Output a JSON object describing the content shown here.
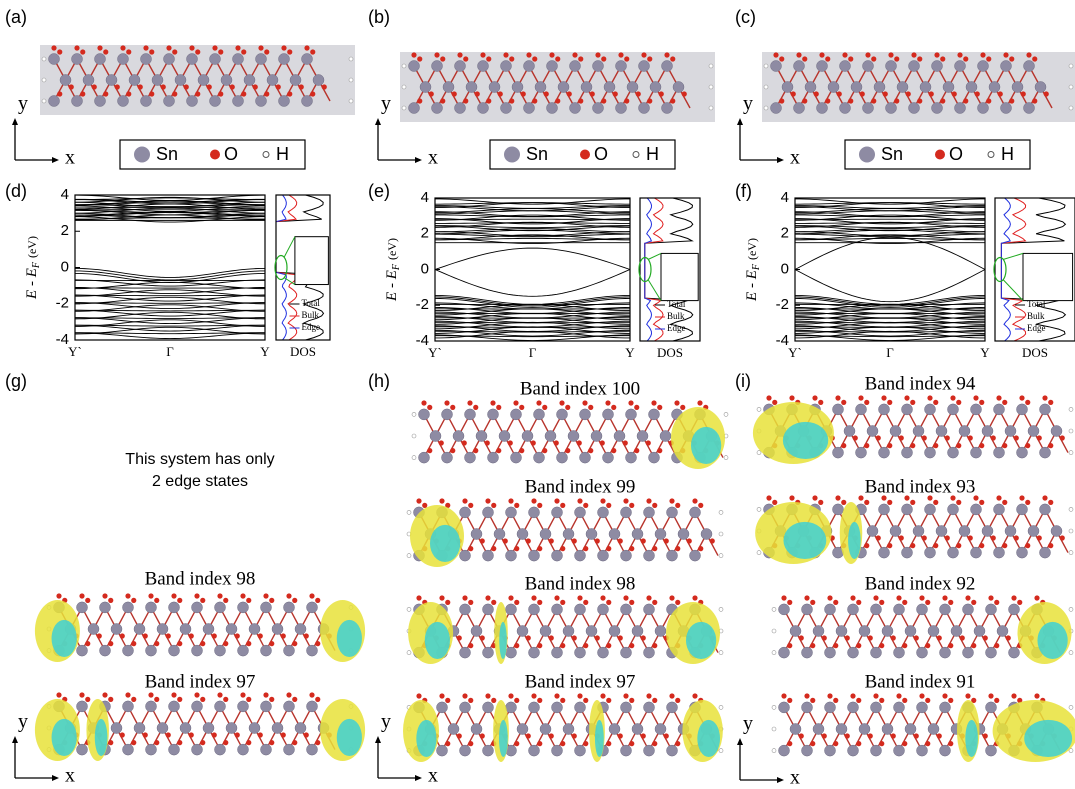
{
  "panels": [
    {
      "label": "(a)",
      "axes": [
        "y",
        "x"
      ],
      "legend": [
        "Sn",
        "O",
        "H"
      ]
    },
    {
      "label": "(b)",
      "axes": [
        "y",
        "x"
      ],
      "legend": [
        "Sn",
        "O",
        "H"
      ]
    },
    {
      "label": "(c)",
      "axes": [
        "y",
        "x"
      ],
      "legend": [
        "Sn",
        "O",
        "H"
      ]
    },
    {
      "label": "(d)",
      "y_label": "E - E",
      "y_label_sub": "F",
      "y_unit": "(eV)",
      "yticks": [
        4,
        2,
        0,
        -2,
        -4
      ],
      "xticks": [
        "Y`",
        "Γ",
        "Y"
      ],
      "dos_label": "DOS",
      "dos_legend": [
        "Total",
        "Bulk",
        "Edge"
      ]
    },
    {
      "label": "(e)",
      "y_label": "E - E",
      "y_label_sub": "F",
      "y_unit": "(eV)",
      "yticks": [
        4,
        2,
        0,
        -2,
        -4
      ],
      "xticks": [
        "Y`",
        "Γ",
        "Y"
      ],
      "dos_label": "DOS",
      "dos_legend": [
        "Total",
        "Bulk",
        "Edge"
      ]
    },
    {
      "label": "(f)",
      "y_label": "E - E",
      "y_label_sub": "F",
      "y_unit": "(eV)",
      "yticks": [
        4,
        2,
        0,
        -2,
        -4
      ],
      "xticks": [
        "Y`",
        "Γ",
        "Y"
      ],
      "dos_label": "DOS",
      "dos_legend": [
        "Total",
        "Bulk",
        "Edge"
      ]
    },
    {
      "label": "(g)",
      "note": [
        "This system has only",
        "2 edge states"
      ],
      "states": [
        "Band index 98",
        "Band index 97"
      ],
      "axes": [
        "y",
        "x"
      ]
    },
    {
      "label": "(h)",
      "states": [
        "Band index 100",
        "Band index 99",
        "Band index 98",
        "Band index 97"
      ],
      "axes": [
        "y",
        "x"
      ]
    },
    {
      "label": "(i)",
      "states": [
        "Band index 94",
        "Band index 93",
        "Band index 92",
        "Band index 91"
      ],
      "axes": [
        "y",
        "x"
      ]
    }
  ]
}
